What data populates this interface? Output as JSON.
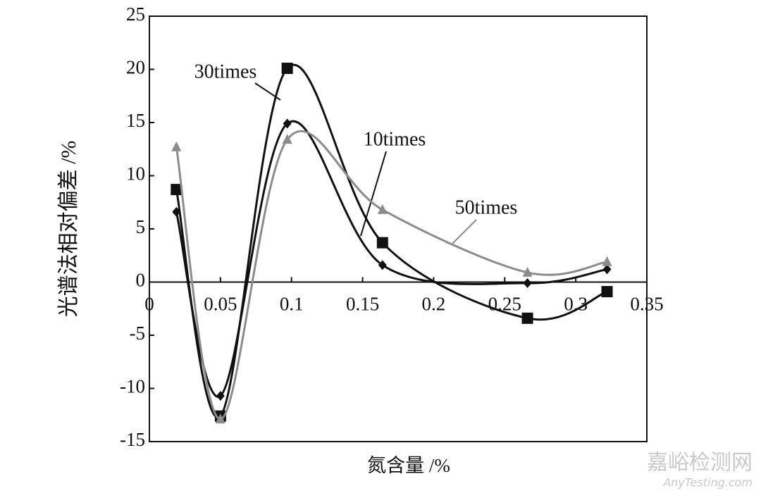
{
  "chart_data": {
    "type": "line",
    "smooth": true,
    "x_label": "氮含量 /%",
    "y_label": "光谱法相对偏差 /%",
    "xlim": [
      0,
      0.35
    ],
    "xticks": [
      0,
      0.05,
      0.1,
      0.15,
      0.2,
      0.25,
      0.3,
      0.35
    ],
    "ylim": [
      -15,
      25
    ],
    "yticks": [
      -15,
      -10,
      -5,
      0,
      5,
      10,
      15,
      20,
      25
    ],
    "x": [
      0.019,
      0.05,
      0.097,
      0.164,
      0.266,
      0.322
    ],
    "series": [
      {
        "name": "10times",
        "color": "#111111",
        "marker": "diamond",
        "values": [
          6.6,
          -10.7,
          14.9,
          1.6,
          -0.1,
          1.2
        ]
      },
      {
        "name": "30times",
        "color": "#111111",
        "marker": "square",
        "values": [
          8.7,
          -12.6,
          20.1,
          3.7,
          -3.4,
          -0.9
        ]
      },
      {
        "name": "50times",
        "color": "#8c8c8c",
        "marker": "triangle",
        "values": [
          12.7,
          -12.9,
          13.4,
          6.8,
          0.9,
          1.9
        ]
      }
    ]
  },
  "watermark": {
    "title": "嘉峪检测网",
    "url": "AnyTesting.com"
  }
}
